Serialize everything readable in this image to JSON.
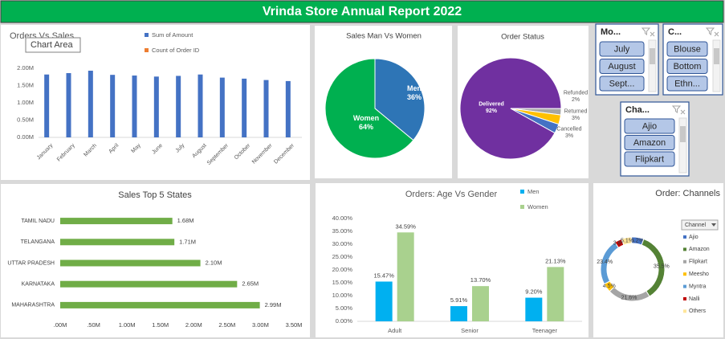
{
  "header": {
    "title": "Vrinda Store Annual Report 2022"
  },
  "slicers": [
    {
      "title": "Mo...",
      "items": [
        "July",
        "August",
        "Sept..."
      ]
    },
    {
      "title": "C...",
      "items": [
        "Blouse",
        "Bottom",
        "Ethn..."
      ]
    },
    {
      "title": "Cha...",
      "items": [
        "Ajio",
        "Amazon",
        "Flipkart"
      ]
    }
  ],
  "chart_data": [
    {
      "type": "bar",
      "title": "Orders Vs Sales",
      "tooltip": "Chart Area",
      "categories": [
        "January",
        "February",
        "March",
        "April",
        "May",
        "June",
        "July",
        "August",
        "September",
        "October",
        "November",
        "December"
      ],
      "series": [
        {
          "name": "Sum of Amount",
          "color": "#4472c4",
          "values": [
            1820000,
            1860000,
            1930000,
            1810000,
            1790000,
            1760000,
            1780000,
            1820000,
            1730000,
            1700000,
            1660000,
            1630000
          ]
        },
        {
          "name": "Count of Order ID",
          "color": "#ed7d31",
          "values": [
            null,
            null,
            null,
            null,
            null,
            null,
            null,
            null,
            null,
            null,
            null,
            null
          ]
        }
      ],
      "ylim": [
        0,
        2500000
      ],
      "yticks": [
        {
          "value": 0,
          "label": "0.00M"
        },
        {
          "value": 500000,
          "label": "0.50M"
        },
        {
          "value": 1000000,
          "label": "1.00M"
        },
        {
          "value": 1500000,
          "label": "1.50M"
        },
        {
          "value": 2000000,
          "label": "2.00M"
        }
      ],
      "grid": false
    },
    {
      "type": "pie",
      "title": "Sales Man Vs Women",
      "categories": [
        "Men",
        "Women"
      ],
      "values": [
        36,
        64
      ],
      "value_labels": [
        "36%",
        "64%"
      ],
      "colors": [
        "#2e75b6",
        "#00b050"
      ]
    },
    {
      "type": "pie",
      "title": "Order Status",
      "categories": [
        "Delivered",
        "Refunded",
        "Returned",
        "Cancelled"
      ],
      "values": [
        92,
        2,
        3,
        3
      ],
      "value_labels": [
        "92%",
        "2%",
        "3%",
        "3%"
      ],
      "colors": [
        "#7030a0",
        "#a5a5a5",
        "#ffc000",
        "#4472c4"
      ]
    },
    {
      "type": "hbar",
      "title": "Sales Top 5 States",
      "categories": [
        "TAMIL NADU",
        "TELANGANA",
        "UTTAR PRADESH",
        "KARNATAKA",
        "MAHARASHTRA"
      ],
      "values": [
        1680000,
        1710000,
        2100000,
        2650000,
        2990000
      ],
      "value_labels": [
        "1.68M",
        "1.71M",
        "2.10M",
        "2.65M",
        "2.99M"
      ],
      "color": "#70ad47",
      "xlim": [
        0,
        3500000
      ],
      "xticks": [
        {
          "value": 0,
          "label": ".00M"
        },
        {
          "value": 500000,
          "label": ".50M"
        },
        {
          "value": 1000000,
          "label": "1.00M"
        },
        {
          "value": 1500000,
          "label": "1.50M"
        },
        {
          "value": 2000000,
          "label": "2.00M"
        },
        {
          "value": 2500000,
          "label": "2.50M"
        },
        {
          "value": 3000000,
          "label": "3.00M"
        },
        {
          "value": 3500000,
          "label": "3.50M"
        }
      ]
    },
    {
      "type": "bar",
      "title": "Orders: Age Vs Gender",
      "categories": [
        "Adult",
        "Senior",
        "Teenager"
      ],
      "series": [
        {
          "name": "Men",
          "color": "#00b0f0",
          "values": [
            15.47,
            5.91,
            9.2
          ],
          "value_labels": [
            "15.47%",
            "5.91%",
            "9.20%"
          ]
        },
        {
          "name": "Women",
          "color": "#a9d18e",
          "values": [
            34.59,
            13.7,
            21.13
          ],
          "value_labels": [
            "34.59%",
            "13.70%",
            "21.13%"
          ]
        }
      ],
      "ylim": [
        0,
        40
      ],
      "yticks": [
        {
          "value": 0,
          "label": "0.00%"
        },
        {
          "value": 5,
          "label": "5.00%"
        },
        {
          "value": 10,
          "label": "10.00%"
        },
        {
          "value": 15,
          "label": "15.00%"
        },
        {
          "value": 20,
          "label": "20.00%"
        },
        {
          "value": 25,
          "label": "25.00%"
        },
        {
          "value": 30,
          "label": "30.00%"
        },
        {
          "value": 35,
          "label": "35.00%"
        },
        {
          "value": 40,
          "label": "40.00%"
        }
      ],
      "grid": false
    },
    {
      "type": "donut",
      "title": "Order: Channels",
      "legend_title": "Channel",
      "categories": [
        "Ajio",
        "Amazon",
        "Flipkart",
        "Meesho",
        "Myntra",
        "Nalli",
        "Others"
      ],
      "values": [
        6.2,
        35.5,
        21.6,
        4.5,
        23.4,
        3.6,
        5.1
      ],
      "value_labels": [
        "6.2%",
        "35.5%",
        "21.6%",
        "4.5%",
        "23.4%",
        "3.6%",
        "5.1%"
      ],
      "colors": [
        "#4472c4",
        "#548235",
        "#a5a5a5",
        "#ffc000",
        "#5b9bd5",
        "#c00000",
        "#ffe699"
      ]
    }
  ]
}
